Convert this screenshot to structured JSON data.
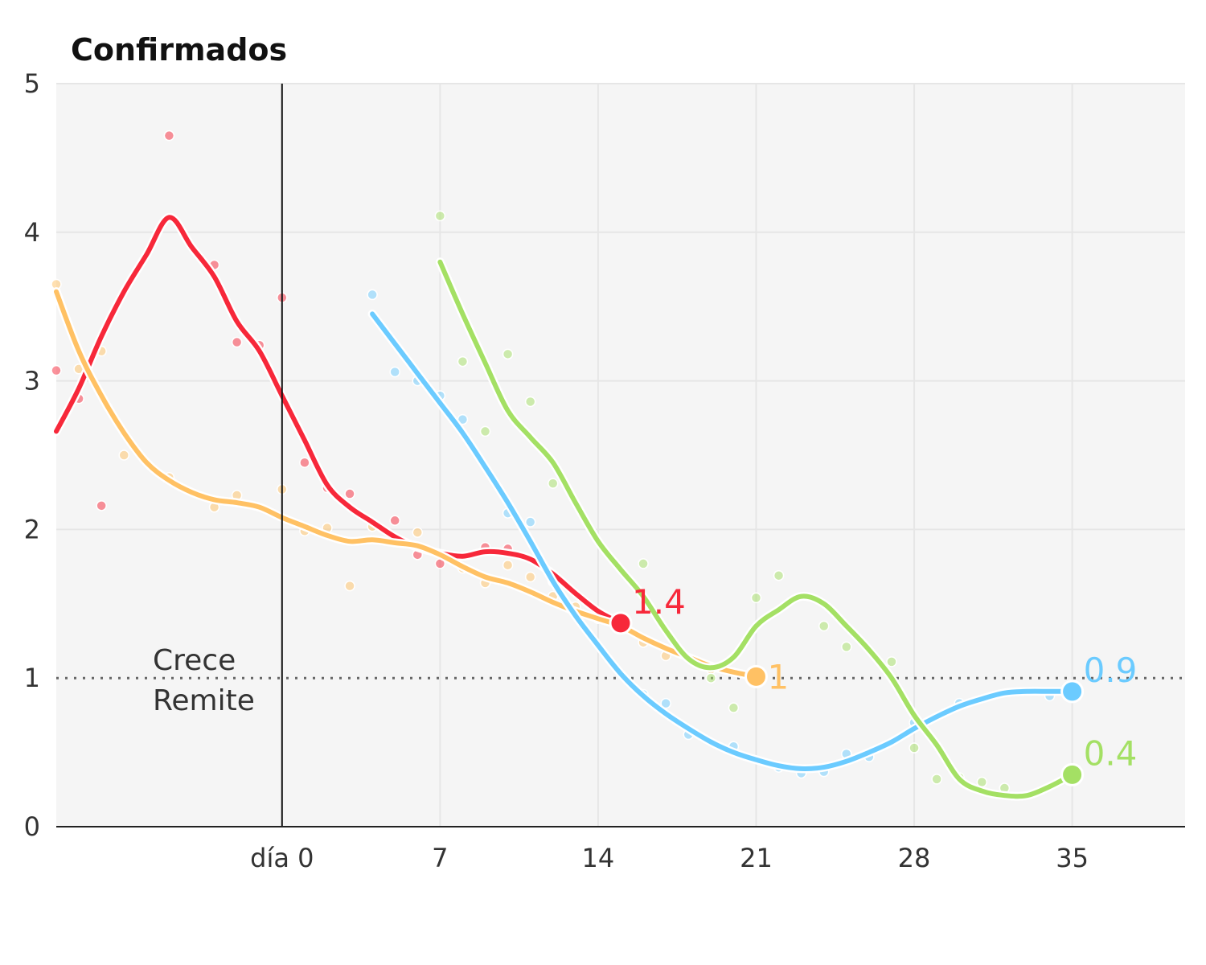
{
  "chart_data": {
    "type": "line",
    "title": "Confirmados",
    "xlabel": "",
    "ylabel": "",
    "xlim": [
      -10,
      40
    ],
    "ylim": [
      0,
      5
    ],
    "x_ticks": [
      {
        "value": 0,
        "label": "día 0"
      },
      {
        "value": 7,
        "label": "7"
      },
      {
        "value": 14,
        "label": "14"
      },
      {
        "value": 21,
        "label": "21"
      },
      {
        "value": 28,
        "label": "28"
      },
      {
        "value": 35,
        "label": "35"
      }
    ],
    "y_ticks": [
      0,
      1,
      2,
      3,
      4,
      5
    ],
    "grid": true,
    "reference_line": {
      "y": 1,
      "above_label": "Crece",
      "below_label": "Remite"
    },
    "day_zero_marker": 0,
    "series": [
      {
        "color": "#f7283a",
        "end_label": "1.4",
        "line": [
          [
            -10,
            2.66
          ],
          [
            -9,
            2.95
          ],
          [
            -8,
            3.3
          ],
          [
            -7,
            3.6
          ],
          [
            -6,
            3.85
          ],
          [
            -5,
            4.1
          ],
          [
            -4,
            3.9
          ],
          [
            -3,
            3.7
          ],
          [
            -2,
            3.4
          ],
          [
            -1,
            3.2
          ],
          [
            0,
            2.9
          ],
          [
            1,
            2.6
          ],
          [
            2,
            2.3
          ],
          [
            3,
            2.15
          ],
          [
            4,
            2.05
          ],
          [
            5,
            1.95
          ],
          [
            6,
            1.88
          ],
          [
            7,
            1.84
          ],
          [
            8,
            1.82
          ],
          [
            9,
            1.85
          ],
          [
            10,
            1.84
          ],
          [
            11,
            1.8
          ],
          [
            12,
            1.7
          ],
          [
            13,
            1.57
          ],
          [
            14,
            1.45
          ],
          [
            15,
            1.37
          ]
        ],
        "points": [
          [
            -10,
            3.07
          ],
          [
            -9,
            2.88
          ],
          [
            -8,
            2.16
          ],
          [
            -5,
            4.65
          ],
          [
            -3,
            3.78
          ],
          [
            -2,
            3.26
          ],
          [
            -1,
            3.24
          ],
          [
            0,
            3.56
          ],
          [
            1,
            2.45
          ],
          [
            2,
            2.28
          ],
          [
            3,
            2.24
          ],
          [
            5,
            2.06
          ],
          [
            6,
            1.83
          ],
          [
            7,
            1.77
          ],
          [
            9,
            1.88
          ],
          [
            10,
            1.87
          ],
          [
            12,
            1.68
          ]
        ]
      },
      {
        "color": "#ffc164",
        "end_label": "1",
        "line": [
          [
            -10,
            3.6
          ],
          [
            -9,
            3.2
          ],
          [
            -8,
            2.9
          ],
          [
            -7,
            2.65
          ],
          [
            -6,
            2.45
          ],
          [
            -5,
            2.33
          ],
          [
            -4,
            2.25
          ],
          [
            -3,
            2.2
          ],
          [
            -2,
            2.18
          ],
          [
            -1,
            2.15
          ],
          [
            0,
            2.08
          ],
          [
            1,
            2.02
          ],
          [
            2,
            1.96
          ],
          [
            3,
            1.92
          ],
          [
            4,
            1.93
          ],
          [
            5,
            1.91
          ],
          [
            6,
            1.89
          ],
          [
            7,
            1.83
          ],
          [
            8,
            1.75
          ],
          [
            9,
            1.68
          ],
          [
            10,
            1.64
          ],
          [
            11,
            1.58
          ],
          [
            12,
            1.51
          ],
          [
            13,
            1.45
          ],
          [
            14,
            1.4
          ],
          [
            15,
            1.35
          ],
          [
            16,
            1.27
          ],
          [
            17,
            1.2
          ],
          [
            18,
            1.14
          ],
          [
            19,
            1.08
          ],
          [
            20,
            1.04
          ],
          [
            21,
            1.01
          ]
        ],
        "points": [
          [
            -10,
            3.65
          ],
          [
            -9,
            3.08
          ],
          [
            -8,
            3.2
          ],
          [
            -7,
            2.5
          ],
          [
            -5,
            2.35
          ],
          [
            -3,
            2.15
          ],
          [
            -2,
            2.23
          ],
          [
            0,
            2.27
          ],
          [
            1,
            1.99
          ],
          [
            2,
            2.01
          ],
          [
            3,
            1.62
          ],
          [
            4,
            2.02
          ],
          [
            6,
            1.98
          ],
          [
            8,
            1.74
          ],
          [
            9,
            1.64
          ],
          [
            10,
            1.76
          ],
          [
            11,
            1.68
          ],
          [
            12,
            1.55
          ],
          [
            13,
            1.48
          ],
          [
            14,
            1.4
          ],
          [
            16,
            1.24
          ],
          [
            17,
            1.15
          ],
          [
            19,
            1.06
          ]
        ]
      },
      {
        "color": "#6bcbff",
        "end_label": "0.9",
        "line": [
          [
            4,
            3.45
          ],
          [
            5,
            3.25
          ],
          [
            6,
            3.05
          ],
          [
            7,
            2.85
          ],
          [
            8,
            2.65
          ],
          [
            9,
            2.42
          ],
          [
            10,
            2.18
          ],
          [
            11,
            1.92
          ],
          [
            12,
            1.65
          ],
          [
            13,
            1.42
          ],
          [
            14,
            1.22
          ],
          [
            15,
            1.03
          ],
          [
            16,
            0.88
          ],
          [
            17,
            0.76
          ],
          [
            18,
            0.66
          ],
          [
            19,
            0.57
          ],
          [
            20,
            0.5
          ],
          [
            21,
            0.45
          ],
          [
            22,
            0.41
          ],
          [
            23,
            0.39
          ],
          [
            24,
            0.4
          ],
          [
            25,
            0.44
          ],
          [
            26,
            0.5
          ],
          [
            27,
            0.57
          ],
          [
            28,
            0.66
          ],
          [
            29,
            0.74
          ],
          [
            30,
            0.81
          ],
          [
            31,
            0.86
          ],
          [
            32,
            0.9
          ],
          [
            33,
            0.91
          ],
          [
            34,
            0.91
          ],
          [
            35,
            0.91
          ]
        ],
        "points": [
          [
            4,
            3.58
          ],
          [
            5,
            3.06
          ],
          [
            6,
            3.0
          ],
          [
            7,
            2.9
          ],
          [
            8,
            2.74
          ],
          [
            10,
            2.11
          ],
          [
            11,
            2.05
          ],
          [
            12,
            1.65
          ],
          [
            16,
            0.89
          ],
          [
            17,
            0.83
          ],
          [
            18,
            0.62
          ],
          [
            20,
            0.54
          ],
          [
            22,
            0.4
          ],
          [
            23,
            0.36
          ],
          [
            24,
            0.37
          ],
          [
            25,
            0.49
          ],
          [
            26,
            0.47
          ],
          [
            28,
            0.7
          ],
          [
            30,
            0.83
          ],
          [
            34,
            0.88
          ]
        ]
      },
      {
        "color": "#a4e064",
        "end_label": "0.4",
        "line": [
          [
            7,
            3.8
          ],
          [
            8,
            3.45
          ],
          [
            9,
            3.12
          ],
          [
            10,
            2.8
          ],
          [
            11,
            2.62
          ],
          [
            12,
            2.45
          ],
          [
            13,
            2.18
          ],
          [
            14,
            1.92
          ],
          [
            15,
            1.73
          ],
          [
            16,
            1.55
          ],
          [
            17,
            1.32
          ],
          [
            18,
            1.13
          ],
          [
            19,
            1.07
          ],
          [
            20,
            1.14
          ],
          [
            21,
            1.35
          ],
          [
            22,
            1.46
          ],
          [
            23,
            1.55
          ],
          [
            24,
            1.5
          ],
          [
            25,
            1.35
          ],
          [
            26,
            1.19
          ],
          [
            27,
            1.0
          ],
          [
            28,
            0.75
          ],
          [
            29,
            0.55
          ],
          [
            30,
            0.32
          ],
          [
            31,
            0.24
          ],
          [
            32,
            0.21
          ],
          [
            33,
            0.21
          ],
          [
            34,
            0.27
          ],
          [
            35,
            0.35
          ]
        ],
        "points": [
          [
            7,
            4.11
          ],
          [
            8,
            3.13
          ],
          [
            9,
            2.66
          ],
          [
            10,
            3.18
          ],
          [
            11,
            2.86
          ],
          [
            12,
            2.31
          ],
          [
            16,
            1.77
          ],
          [
            19,
            1.0
          ],
          [
            20,
            0.8
          ],
          [
            21,
            1.54
          ],
          [
            22,
            1.69
          ],
          [
            24,
            1.35
          ],
          [
            25,
            1.21
          ],
          [
            27,
            1.11
          ],
          [
            28,
            0.53
          ],
          [
            29,
            0.32
          ],
          [
            30,
            0.33
          ],
          [
            31,
            0.3
          ],
          [
            32,
            0.26
          ]
        ]
      }
    ]
  }
}
